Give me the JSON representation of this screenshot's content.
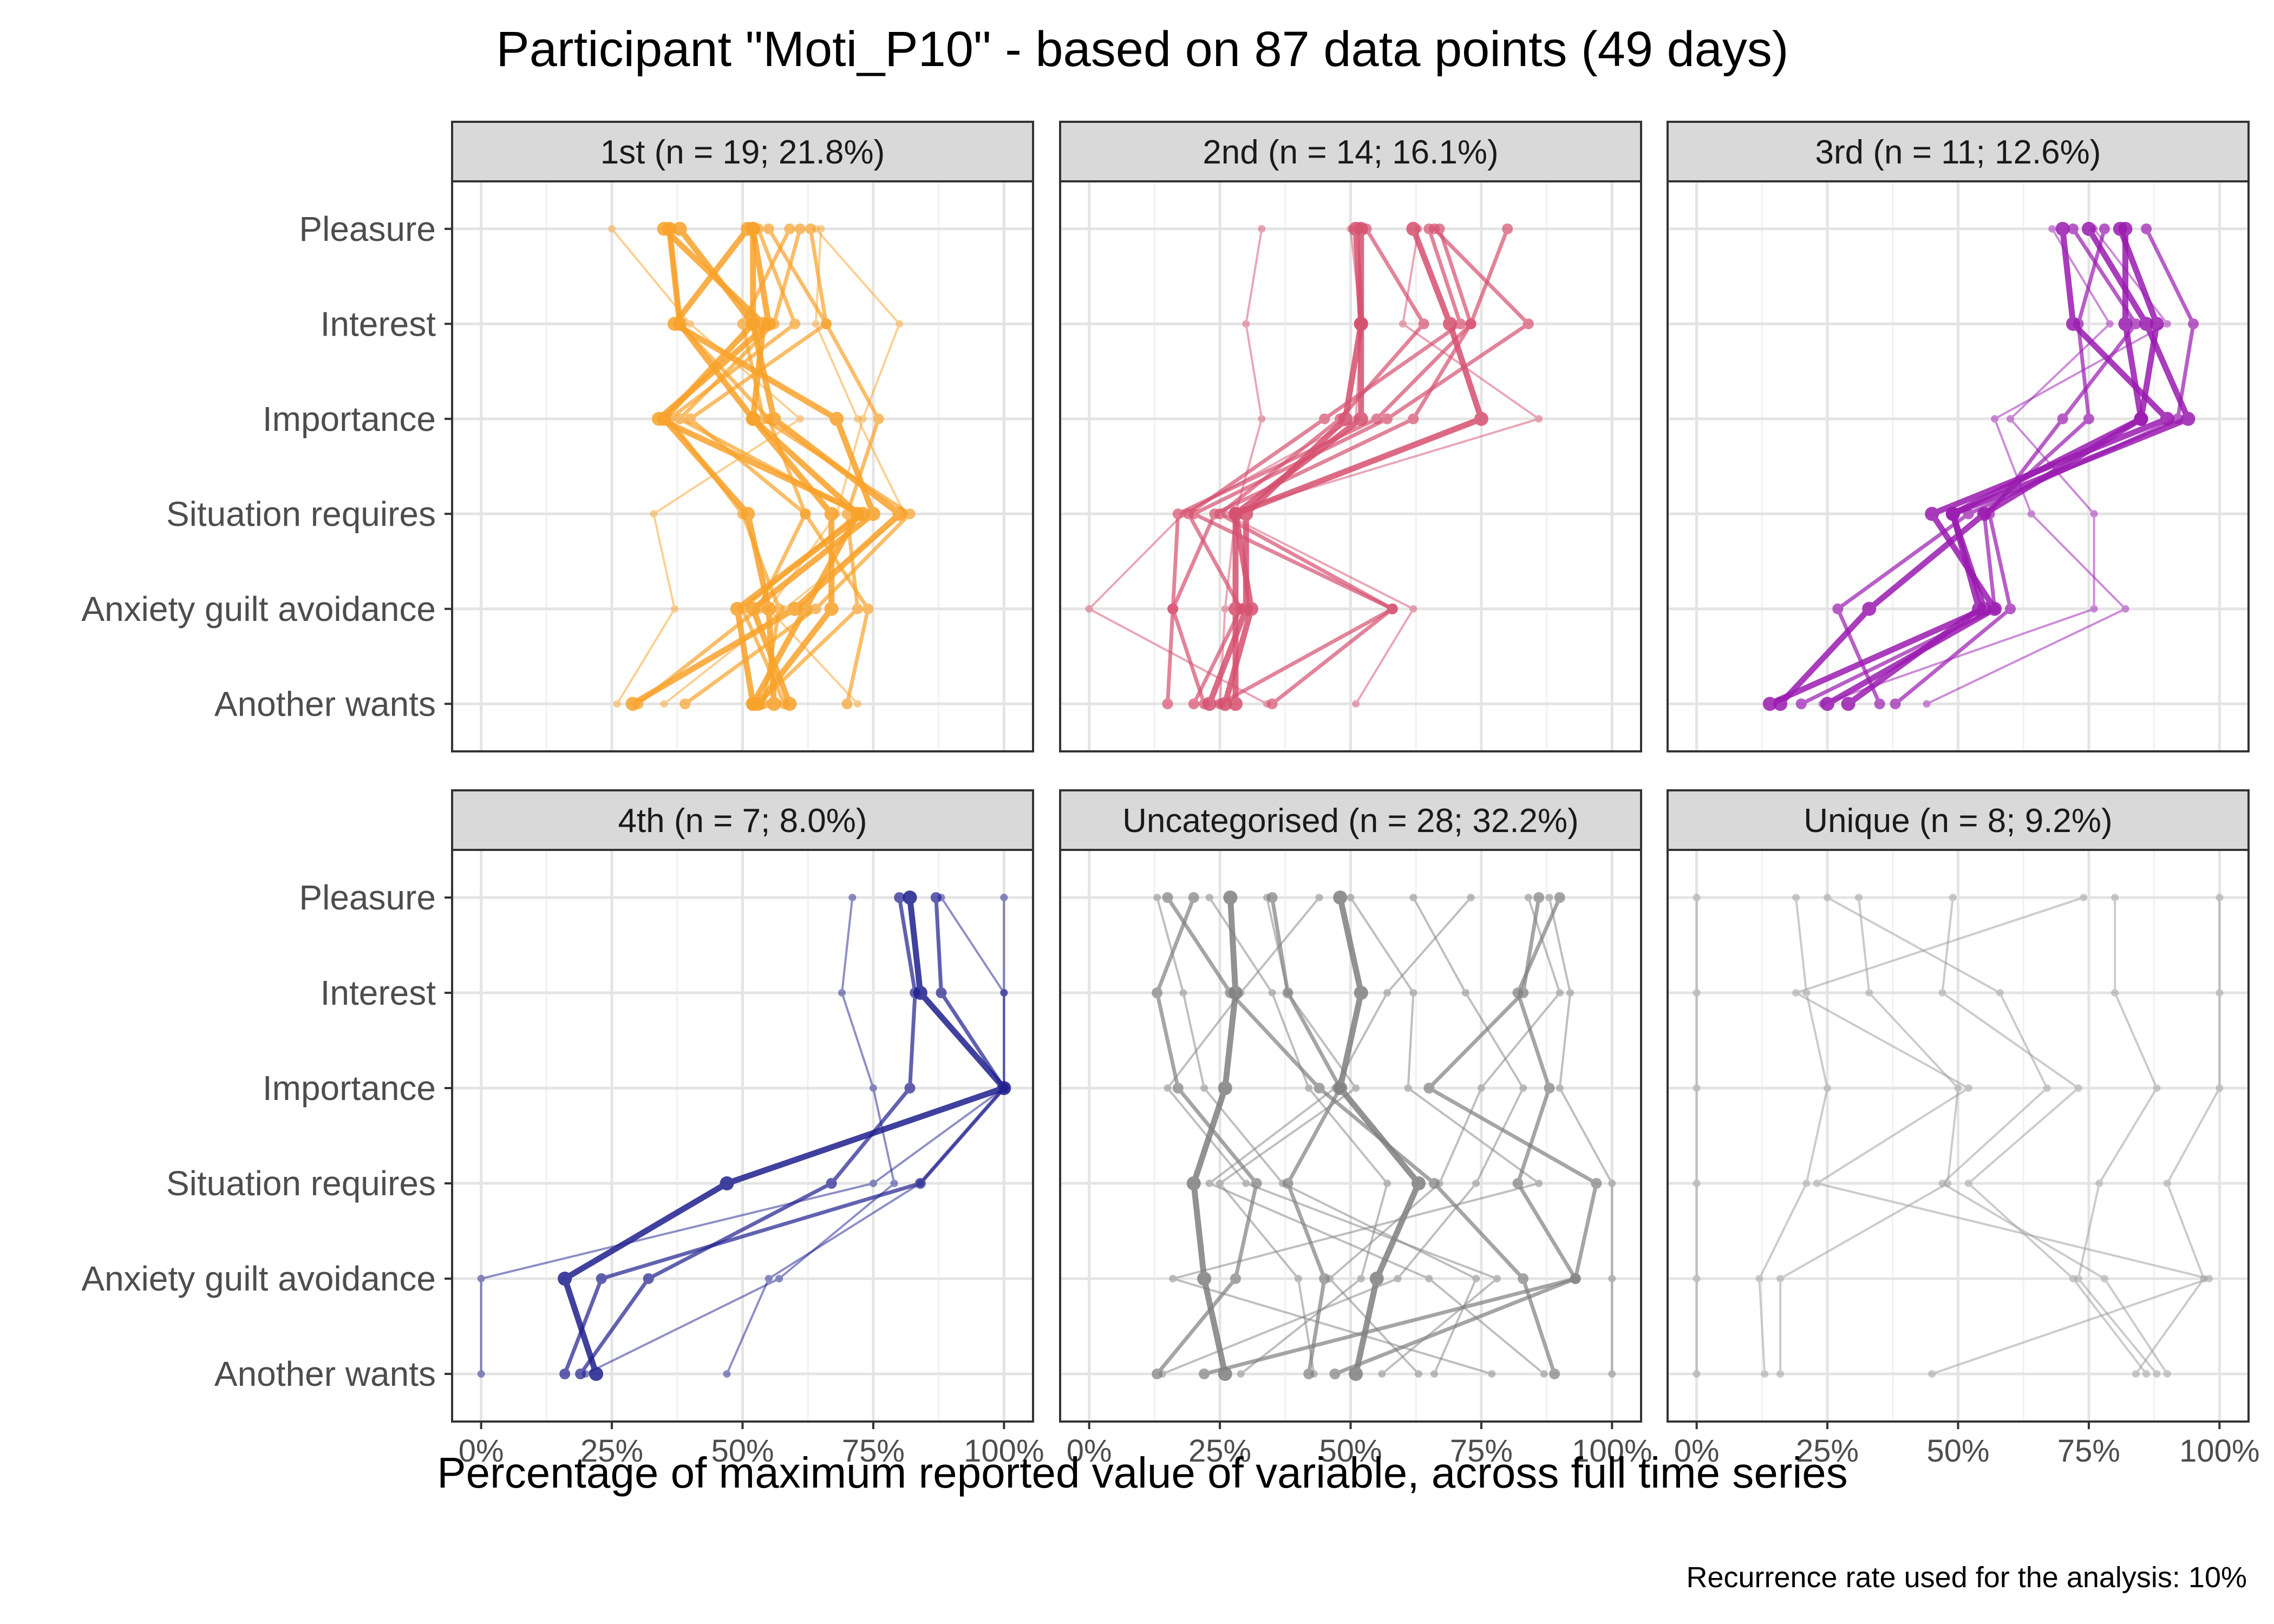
{
  "title": "Participant \"Moti_P10\" - based on 87 data points (49 days)",
  "xlabel": "Percentage of maximum reported value of variable, across full time series",
  "caption": "Recurrence rate used for the analysis: 10%",
  "chart_data": {
    "type": "line",
    "orientation": "profile",
    "variables": [
      "Pleasure",
      "Interest",
      "Importance",
      "Situation requires",
      "Anxiety guilt avoidance",
      "Another wants"
    ],
    "x_ticks": [
      "0%",
      "25%",
      "50%",
      "75%",
      "100%"
    ],
    "xlim": [
      0,
      100
    ],
    "grid": true,
    "panels": [
      {
        "name": "1st",
        "strip": "1st (n = 19; 21.8%)",
        "color": "#F8A22A",
        "profiles": [
          {
            "values": [
              36,
              38,
              52,
              72,
              62,
              52
            ],
            "weight": 3
          },
          {
            "values": [
              52,
              52,
              35,
              51,
              55,
              56
            ],
            "weight": 3
          },
          {
            "values": [
              38,
              52,
              56,
              80,
              60,
              29
            ],
            "weight": 3
          },
          {
            "values": [
              55,
              66,
              40,
              62,
              53,
              30
            ],
            "weight": 2
          },
          {
            "values": [
              63,
              66,
              76,
              70,
              72,
              53
            ],
            "weight": 2
          },
          {
            "values": [
              52,
              55,
              34,
              73,
              49,
              52
            ],
            "weight": 3
          },
          {
            "values": [
              61,
              56,
              38,
              72,
              50,
              58
            ],
            "weight": 2
          },
          {
            "values": [
              36,
              38,
              55,
              62,
              74,
              70
            ],
            "weight": 2
          },
          {
            "values": [
              64,
              80,
              73,
              68,
              55,
              72
            ],
            "weight": 1
          },
          {
            "values": [
              25,
              40,
              61,
              33,
              37,
              26
            ],
            "weight": 1
          },
          {
            "values": [
              51,
              37,
              68,
              75,
              52,
              59
            ],
            "weight": 3
          },
          {
            "values": [
              35,
              54,
              52,
              67,
              67,
              53
            ],
            "weight": 3
          },
          {
            "values": [
              53,
              60,
              36,
              50,
              57,
              54
            ],
            "weight": 2
          },
          {
            "values": [
              59,
              50,
              54,
              82,
              64,
              39
            ],
            "weight": 2
          },
          {
            "values": [
              65,
              64,
              72,
              81,
              58,
              35
            ],
            "weight": 1
          }
        ]
      },
      {
        "name": "2nd",
        "strip": "2nd (n = 14; 16.1%)",
        "color": "#D6506F",
        "profiles": [
          {
            "values": [
              52,
              52,
              52,
              28,
              28,
              28
            ],
            "weight": 3
          },
          {
            "values": [
              62,
              69,
              75,
              28,
              31,
              26
            ],
            "weight": 3
          },
          {
            "values": [
              51,
              52,
              49,
              30,
              30,
              23
            ],
            "weight": 3
          },
          {
            "values": [
              67,
              73,
              55,
              17,
              16,
              22
            ],
            "weight": 2
          },
          {
            "values": [
              65,
              71,
              45,
              19,
              29,
              20
            ],
            "weight": 2
          },
          {
            "values": [
              80,
              73,
              62,
              24,
              16,
              15
            ],
            "weight": 2
          },
          {
            "values": [
              66,
              84,
              57,
              20,
              58,
              25
            ],
            "weight": 2
          },
          {
            "values": [
              50,
              52,
              51,
              18,
              0,
              34
            ],
            "weight": 1
          },
          {
            "values": [
              33,
              30,
              33,
              28,
              26,
              25
            ],
            "weight": 1
          },
          {
            "values": [
              63,
              60,
              86,
              26,
              62,
              51
            ],
            "weight": 1
          },
          {
            "values": [
              53,
              64,
              48,
              25,
              58,
              35
            ],
            "weight": 2
          }
        ]
      },
      {
        "name": "3rd",
        "strip": "3rd (n = 11; 12.6%)",
        "color": "#9A1BB0",
        "profiles": [
          {
            "values": [
              70,
              72,
              90,
              45,
              57,
              25
            ],
            "weight": 3
          },
          {
            "values": [
              75,
              86,
              94,
              49,
              55,
              14
            ],
            "weight": 3
          },
          {
            "values": [
              82,
              82,
              85,
              49,
              54,
              29
            ],
            "weight": 3
          },
          {
            "values": [
              81,
              88,
              85,
              55,
              33,
              16
            ],
            "weight": 3
          },
          {
            "values": [
              78,
              73,
              75,
              55,
              57,
              20
            ],
            "weight": 2
          },
          {
            "values": [
              86,
              95,
              92,
              52,
              27,
              35
            ],
            "weight": 2
          },
          {
            "values": [
              72,
              84,
              70,
              56,
              60,
              38
            ],
            "weight": 2
          },
          {
            "values": [
              76,
              90,
              57,
              64,
              82,
              44
            ],
            "weight": 1
          },
          {
            "values": [
              68,
              79,
              60,
              76,
              76,
              24
            ],
            "weight": 1
          }
        ]
      },
      {
        "name": "4th",
        "strip": "4th (n = 7; 8.0%)",
        "color": "#1F1F8E",
        "profiles": [
          {
            "values": [
              82,
              84,
              100,
              47,
              16,
              22
            ],
            "weight": 3
          },
          {
            "values": [
              80,
              83,
              82,
              67,
              32,
              19
            ],
            "weight": 2
          },
          {
            "values": [
              87,
              88,
              100,
              84,
              23,
              16
            ],
            "weight": 2
          },
          {
            "values": [
              71,
              69,
              75,
              79,
              57,
              20
            ],
            "weight": 1
          },
          {
            "values": [
              100,
              100,
              100,
              75,
              0,
              0
            ],
            "weight": 1
          },
          {
            "values": [
              88,
              100,
              100,
              84,
              55,
              47
            ],
            "weight": 1
          }
        ]
      },
      {
        "name": "Uncategorised",
        "strip": "Uncategorised (n = 28; 32.2%)",
        "color": "#7F7F7F",
        "profiles": [
          {
            "values": [
              27,
              28,
              26,
              20,
              22,
              26
            ],
            "weight": 3
          },
          {
            "values": [
              48,
              52,
              48,
              63,
              55,
              51
            ],
            "weight": 3
          },
          {
            "values": [
              86,
              83,
              65,
              97,
              93,
              47
            ],
            "weight": 2
          },
          {
            "values": [
              35,
              38,
              48,
              38,
              45,
              42
            ],
            "weight": 2
          },
          {
            "values": [
              73,
              57,
              47,
              23,
              65,
              87
            ],
            "weight": 1
          },
          {
            "values": [
              20,
              13,
              17,
              32,
              28,
              13
            ],
            "weight": 2
          },
          {
            "values": [
              15,
              27,
              44,
              66,
              83,
              89
            ],
            "weight": 2
          },
          {
            "values": [
              90,
              82,
              88,
              82,
              93,
              22
            ],
            "weight": 2
          },
          {
            "values": [
              62,
              72,
              83,
              74,
              59,
              14
            ],
            "weight": 1
          },
          {
            "values": [
              50,
              62,
              61,
              86,
              16,
              77
            ],
            "weight": 1
          },
          {
            "values": [
              13,
              18,
              22,
              37,
              74,
              66
            ],
            "weight": 1
          },
          {
            "values": [
              84,
              90,
              75,
              67,
              46,
              63
            ],
            "weight": 1
          },
          {
            "values": [
              34,
              38,
              51,
              25,
              40,
              43
            ],
            "weight": 1
          },
          {
            "values": [
              44,
              29,
              15,
              30,
              78,
              56
            ],
            "weight": 1
          },
          {
            "values": [
              88,
              92,
              90,
              100,
              100,
              100
            ],
            "weight": 1
          },
          {
            "values": [
              23,
              35,
              42,
              57,
              52,
              29
            ],
            "weight": 1
          }
        ]
      },
      {
        "name": "Unique",
        "strip": "Unique (n = 8; 9.2%)",
        "color": "#999999",
        "profiles": [
          {
            "values": [
              0,
              0,
              0,
              0,
              0,
              0
            ],
            "weight": 1
          },
          {
            "values": [
              19,
              21,
              25,
              21,
              12,
              13
            ],
            "weight": 1
          },
          {
            "values": [
              31,
              33,
              50,
              48,
              16,
              16
            ],
            "weight": 1
          },
          {
            "values": [
              49,
              47,
              73,
              52,
              72,
              86
            ],
            "weight": 1
          },
          {
            "values": [
              80,
              80,
              88,
              77,
              73,
              88
            ],
            "weight": 1
          },
          {
            "values": [
              100,
              100,
              100,
              90,
              97,
              84
            ],
            "weight": 1
          },
          {
            "values": [
              25,
              58,
              67,
              47,
              78,
              90
            ],
            "weight": 1
          },
          {
            "values": [
              74,
              19,
              52,
              23,
              98,
              45
            ],
            "weight": 1
          }
        ]
      }
    ]
  }
}
